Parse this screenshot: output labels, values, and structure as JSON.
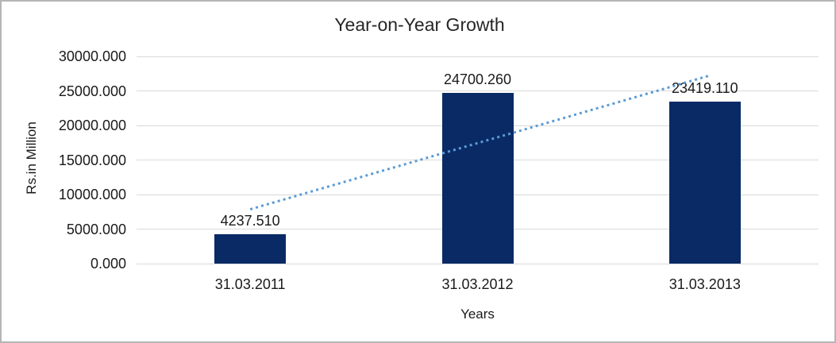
{
  "window": {
    "background": "#ffffff",
    "border_color": "#b5b5b5"
  },
  "chart_data": {
    "type": "bar",
    "title": "Year-on-Year Growth",
    "xlabel": "Years",
    "ylabel": "Rs.in Million",
    "categories": [
      "31.03.2011",
      "31.03.2012",
      "31.03.2013"
    ],
    "values": [
      4237.51,
      24700.26,
      23419.11
    ],
    "value_labels": [
      "4237.510",
      "24700.260",
      "23419.110"
    ],
    "y_ticks": [
      "0.000",
      "5000.000",
      "10000.000",
      "15000.000",
      "20000.000",
      "25000.000",
      "30000.000"
    ],
    "ylim": [
      0,
      30000
    ],
    "grid": "horizontal-only",
    "legend": "none",
    "bar_color": "#0a2a66",
    "gridline_color": "#d9d9d9",
    "trendline": {
      "style": "dotted",
      "color": "#5b9bd5",
      "start_value": 7861.5,
      "end_value": 27043.1
    }
  }
}
